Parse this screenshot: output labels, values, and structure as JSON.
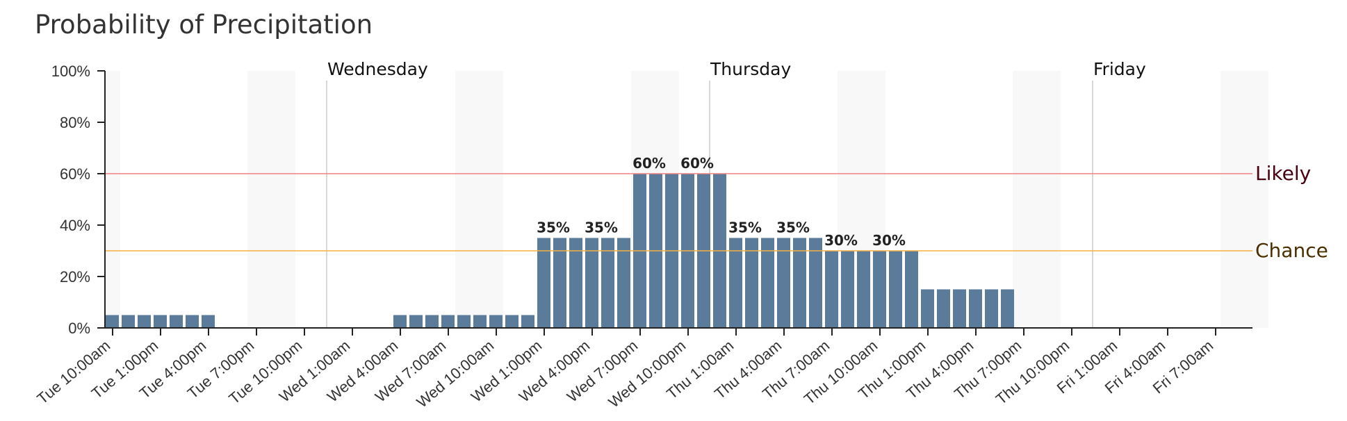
{
  "chart_data": {
    "type": "bar",
    "title": "Probability of Precipitation",
    "ylim": [
      0,
      100
    ],
    "y_ticks": [
      "0%",
      "20%",
      "40%",
      "60%",
      "80%",
      "100%"
    ],
    "y_tick_values": [
      0,
      20,
      40,
      60,
      80,
      100
    ],
    "x_tick_labels": [
      "Tue 10:00am",
      "Tue 1:00pm",
      "Tue 4:00pm",
      "Tue 7:00pm",
      "Tue 10:00pm",
      "Wed 1:00am",
      "Wed 4:00am",
      "Wed 7:00am",
      "Wed 10:00am",
      "Wed 1:00pm",
      "Wed 4:00pm",
      "Wed 7:00pm",
      "Wed 10:00pm",
      "Thu 1:00am",
      "Thu 4:00am",
      "Thu 7:00am",
      "Thu 10:00am",
      "Thu 1:00pm",
      "Thu 4:00pm",
      "Thu 7:00pm",
      "Thu 10:00pm",
      "Fri 1:00am",
      "Fri 4:00am",
      "Fri 7:00am"
    ],
    "day_labels": [
      "Wednesday",
      "Thursday",
      "Friday"
    ],
    "thresholds": [
      {
        "name": "Likely",
        "value": 60,
        "line_color": "#f08080",
        "text_color": "#4a0010"
      },
      {
        "name": "Chance",
        "value": 30,
        "line_color": "#f5b041",
        "text_color": "#4a3000"
      }
    ],
    "bar_color": "#5b7b9a",
    "values": [
      5,
      5,
      5,
      5,
      5,
      5,
      5,
      0,
      0,
      0,
      0,
      0,
      0,
      0,
      0,
      0,
      0,
      0,
      5,
      5,
      5,
      5,
      5,
      5,
      5,
      5,
      5,
      35,
      35,
      35,
      35,
      35,
      35,
      60,
      60,
      60,
      60,
      60,
      60,
      35,
      35,
      35,
      35,
      35,
      35,
      30,
      30,
      30,
      30,
      30,
      30,
      15,
      15,
      15,
      15,
      15,
      15,
      0,
      0,
      0,
      0,
      0,
      0,
      0,
      0,
      0,
      0,
      0,
      0,
      0,
      0,
      0,
      0
    ],
    "bar_labels": [
      {
        "text": "35%",
        "index": 27
      },
      {
        "text": "35%",
        "index": 30
      },
      {
        "text": "60%",
        "index": 33
      },
      {
        "text": "60%",
        "index": 36
      },
      {
        "text": "35%",
        "index": 39
      },
      {
        "text": "35%",
        "index": 42
      },
      {
        "text": "30%",
        "index": 45
      },
      {
        "text": "30%",
        "index": 48
      }
    ]
  }
}
